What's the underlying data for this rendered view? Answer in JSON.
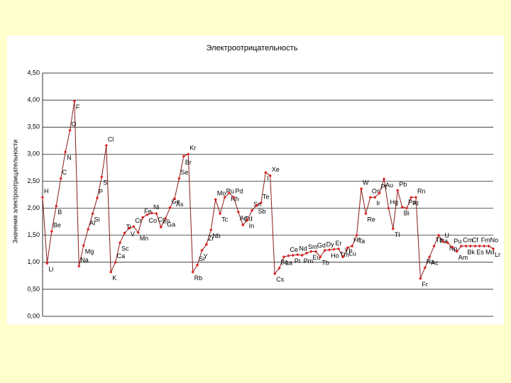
{
  "chart_data": {
    "type": "line",
    "title": "Электроотрицательность",
    "y_label": "Значения электроотрицательности",
    "categories": [
      "H",
      "Li",
      "Be",
      "B",
      "C",
      "N",
      "O",
      "F",
      "Na",
      "Mg",
      "Al",
      "Si",
      "P",
      "S",
      "Cl",
      "K",
      "Ca",
      "Sc",
      "Ti",
      "V",
      "Cr",
      "Mn",
      "Fe",
      "Co",
      "Ni",
      "Cu",
      "Zn",
      "Ga",
      "Ge",
      "As",
      "Se",
      "Br",
      "Kr",
      "Rb",
      "Sr",
      "Y",
      "Zr",
      "Nb",
      "Mo",
      "Tc",
      "Ru",
      "Rh",
      "Pd",
      "Ag",
      "Cd",
      "In",
      "Sn",
      "Sb",
      "Te",
      "I",
      "Xe",
      "Cs",
      "Ba",
      "La",
      "Ce",
      "Pr",
      "Nd",
      "Pm",
      "Sm",
      "Eu",
      "Gd",
      "Tb",
      "Dy",
      "Ho",
      "Er",
      "Tm",
      "Yb",
      "Lu",
      "Hf",
      "Ta",
      "W",
      "Re",
      "Os",
      "Ir",
      "Pt",
      "Au",
      "Hg",
      "Tl",
      "Pb",
      "Bi",
      "Po",
      "At",
      "Rn",
      "Fr",
      "Ra",
      "Ac",
      "Th",
      "Pa",
      "U",
      "Np",
      "Pu",
      "Am",
      "Cm",
      "Bk",
      "Cf",
      "Es",
      "Fm",
      "Md",
      "No",
      "Lr"
    ],
    "values": [
      2.2,
      0.98,
      1.57,
      2.04,
      2.55,
      3.04,
      3.44,
      3.98,
      0.93,
      1.31,
      1.61,
      1.9,
      2.19,
      2.58,
      3.16,
      0.82,
      1.0,
      1.36,
      1.54,
      1.63,
      1.66,
      1.55,
      1.83,
      1.88,
      1.91,
      1.9,
      1.65,
      1.81,
      2.01,
      2.18,
      2.55,
      2.96,
      3.0,
      0.82,
      0.95,
      1.22,
      1.33,
      1.6,
      2.16,
      1.9,
      2.2,
      2.28,
      2.2,
      1.93,
      1.69,
      1.78,
      1.96,
      2.05,
      2.1,
      2.66,
      2.6,
      0.79,
      0.89,
      1.1,
      1.12,
      1.13,
      1.14,
      1.13,
      1.17,
      1.2,
      1.2,
      1.1,
      1.22,
      1.23,
      1.24,
      1.25,
      1.1,
      1.27,
      1.3,
      1.5,
      2.36,
      1.9,
      2.2,
      2.2,
      2.28,
      2.54,
      2.0,
      1.62,
      2.33,
      2.02,
      2.0,
      2.2,
      2.2,
      0.7,
      0.9,
      1.1,
      1.3,
      1.5,
      1.38,
      1.36,
      1.28,
      1.2,
      1.3,
      1.3,
      1.3,
      1.3,
      1.3,
      1.3,
      1.3,
      1.25
    ],
    "color": "#8b1a1a",
    "marker_color": "#e02020",
    "ylim": [
      0,
      4.5
    ],
    "yticks": [
      {
        "value": 0,
        "label": "0,00"
      },
      {
        "value": 0.5,
        "label": "0,50"
      },
      {
        "value": 1,
        "label": "1,00"
      },
      {
        "value": 1.5,
        "label": "1,50"
      },
      {
        "value": 2,
        "label": "2,00"
      },
      {
        "value": 2.5,
        "label": "2,50"
      },
      {
        "value": 3,
        "label": "3,00"
      },
      {
        "value": 3.5,
        "label": "3,50"
      },
      {
        "value": 4,
        "label": "4,00"
      },
      {
        "value": 4.5,
        "label": "4,50"
      }
    ],
    "grid": true
  }
}
